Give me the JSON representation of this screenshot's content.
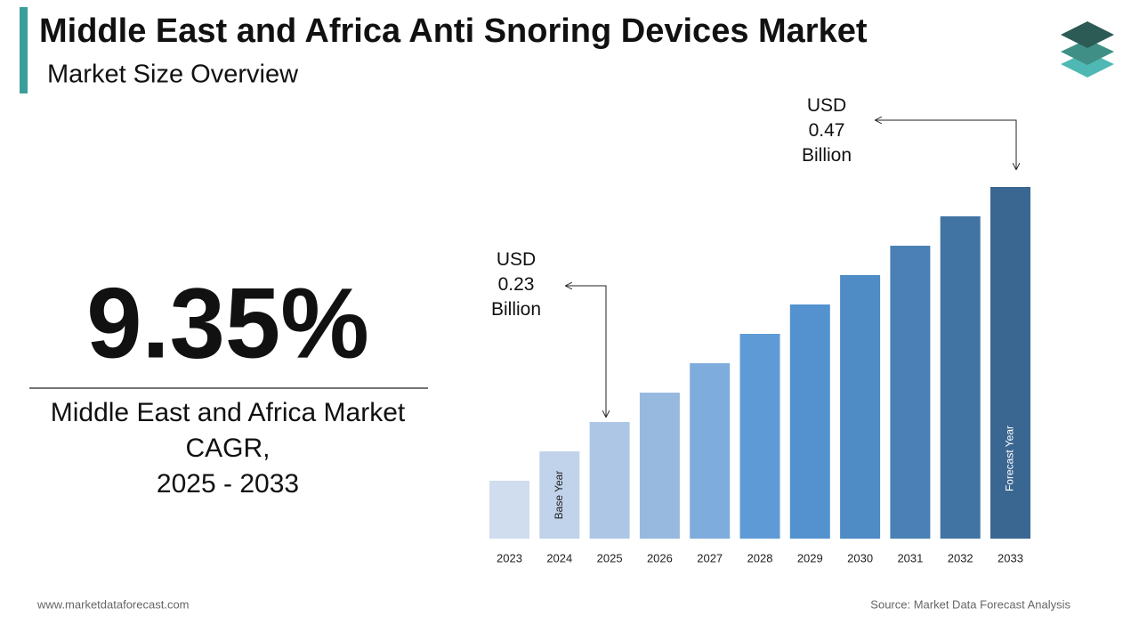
{
  "header": {
    "title": "Middle East and Africa Anti Snoring Devices Market",
    "subtitle": "Market Size Overview"
  },
  "cagr": {
    "value": "9.35%",
    "label_lines": [
      "Middle East and Africa Market",
      "CAGR,",
      "2025 - 2033"
    ]
  },
  "chart_data": {
    "type": "bar",
    "categories": [
      "2023",
      "2024",
      "2025",
      "2026",
      "2027",
      "2028",
      "2029",
      "2030",
      "2031",
      "2032",
      "2033"
    ],
    "values": [
      0.17,
      0.2,
      0.23,
      0.26,
      0.29,
      0.32,
      0.35,
      0.38,
      0.41,
      0.44,
      0.47
    ],
    "value_labels": [
      null,
      null,
      "USD 0.23 Billion",
      null,
      null,
      null,
      null,
      null,
      null,
      null,
      "USD 0.47 Billion"
    ],
    "bar_notes": [
      null,
      "Base Year",
      null,
      null,
      null,
      null,
      null,
      null,
      null,
      null,
      "Forecast Year"
    ],
    "colors": [
      "#d0ddef",
      "#c1d3ea",
      "#aec6e6",
      "#97b9e0",
      "#7eacdc",
      "#5e9bd6",
      "#5492cf",
      "#4f8bc4",
      "#4a80b5",
      "#4274a3",
      "#3a6791"
    ]
  },
  "footer": {
    "website": "www.marketdataforecast.com",
    "source": "Source: Market Data Forecast Analysis"
  }
}
